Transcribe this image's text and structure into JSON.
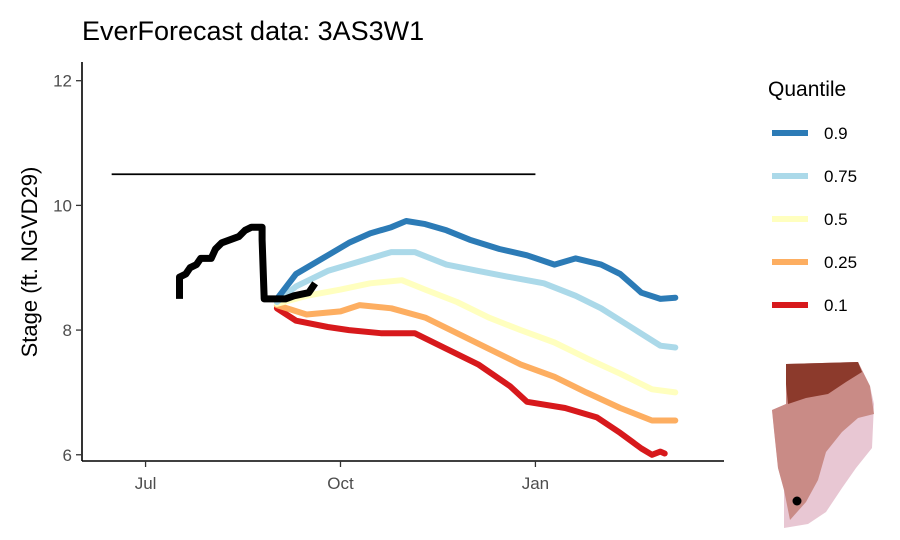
{
  "chart_data": {
    "type": "line",
    "title": "EverForecast data: 3AS3W1",
    "ylabel": "Stage (ft. NGVD29)",
    "xlabel": "",
    "x_ticks": [
      {
        "label": "Jul",
        "date": "2022-07-01"
      },
      {
        "label": "Oct",
        "date": "2022-10-01"
      },
      {
        "label": "Jan",
        "date": "2023-01-01"
      }
    ],
    "y_ticks": [
      6,
      8,
      10,
      12
    ],
    "xlim": [
      "2022-06-01",
      "2023-03-31"
    ],
    "ylim": [
      5.9,
      12.3
    ],
    "grid": false,
    "legend": {
      "title": "Quantile",
      "position": "right"
    },
    "reference_line": {
      "y": 10.5,
      "x_start": "2022-06-15",
      "x_end": "2023-01-01"
    },
    "observed": {
      "color": "#000000",
      "points": [
        [
          "2022-07-17",
          8.5
        ],
        [
          "2022-07-17",
          8.85
        ],
        [
          "2022-07-20",
          8.9
        ],
        [
          "2022-07-22",
          9.0
        ],
        [
          "2022-07-25",
          9.05
        ],
        [
          "2022-07-27",
          9.15
        ],
        [
          "2022-08-01",
          9.15
        ],
        [
          "2022-08-03",
          9.3
        ],
        [
          "2022-08-06",
          9.4
        ],
        [
          "2022-08-10",
          9.45
        ],
        [
          "2022-08-14",
          9.5
        ],
        [
          "2022-08-17",
          9.6
        ],
        [
          "2022-08-20",
          9.65
        ],
        [
          "2022-08-25",
          9.65
        ],
        [
          "2022-08-25",
          9.45
        ],
        [
          "2022-08-26",
          8.5
        ],
        [
          "2022-09-05",
          8.5
        ],
        [
          "2022-09-09",
          8.55
        ],
        [
          "2022-09-16",
          8.6
        ],
        [
          "2022-09-19",
          8.75
        ]
      ]
    },
    "series": [
      {
        "name": "0.9",
        "color": "#2c7bb6",
        "points": [
          [
            "2022-09-01",
            8.5
          ],
          [
            "2022-09-10",
            8.9
          ],
          [
            "2022-09-25",
            9.2
          ],
          [
            "2022-10-05",
            9.4
          ],
          [
            "2022-10-15",
            9.55
          ],
          [
            "2022-10-25",
            9.65
          ],
          [
            "2022-11-01",
            9.75
          ],
          [
            "2022-11-10",
            9.7
          ],
          [
            "2022-11-20",
            9.6
          ],
          [
            "2022-12-01",
            9.45
          ],
          [
            "2022-12-15",
            9.3
          ],
          [
            "2022-12-28",
            9.2
          ],
          [
            "2023-01-10",
            9.05
          ],
          [
            "2023-01-20",
            9.15
          ],
          [
            "2023-02-01",
            9.05
          ],
          [
            "2023-02-10",
            8.9
          ],
          [
            "2023-02-20",
            8.6
          ],
          [
            "2023-03-01",
            8.5
          ],
          [
            "2023-03-08",
            8.52
          ]
        ]
      },
      {
        "name": "0.75",
        "color": "#abd9e9",
        "points": [
          [
            "2022-09-01",
            8.45
          ],
          [
            "2022-09-10",
            8.7
          ],
          [
            "2022-09-25",
            8.95
          ],
          [
            "2022-10-10",
            9.1
          ],
          [
            "2022-10-25",
            9.25
          ],
          [
            "2022-11-05",
            9.25
          ],
          [
            "2022-11-20",
            9.05
          ],
          [
            "2022-12-05",
            8.95
          ],
          [
            "2022-12-20",
            8.85
          ],
          [
            "2023-01-05",
            8.75
          ],
          [
            "2023-01-20",
            8.55
          ],
          [
            "2023-02-01",
            8.35
          ],
          [
            "2023-02-15",
            8.05
          ],
          [
            "2023-03-01",
            7.75
          ],
          [
            "2023-03-08",
            7.72
          ]
        ]
      },
      {
        "name": "0.5",
        "color": "#ffffbf",
        "points": [
          [
            "2022-09-01",
            8.42
          ],
          [
            "2022-09-15",
            8.55
          ],
          [
            "2022-10-01",
            8.65
          ],
          [
            "2022-10-15",
            8.75
          ],
          [
            "2022-10-30",
            8.8
          ],
          [
            "2022-11-10",
            8.65
          ],
          [
            "2022-11-25",
            8.45
          ],
          [
            "2022-12-10",
            8.2
          ],
          [
            "2022-12-25",
            8.0
          ],
          [
            "2023-01-10",
            7.8
          ],
          [
            "2023-01-25",
            7.55
          ],
          [
            "2023-02-10",
            7.3
          ],
          [
            "2023-02-25",
            7.05
          ],
          [
            "2023-03-08",
            7.0
          ]
        ]
      },
      {
        "name": "0.25",
        "color": "#fdae61",
        "points": [
          [
            "2022-09-01",
            8.4
          ],
          [
            "2022-09-15",
            8.25
          ],
          [
            "2022-10-01",
            8.3
          ],
          [
            "2022-10-10",
            8.4
          ],
          [
            "2022-10-25",
            8.35
          ],
          [
            "2022-11-10",
            8.2
          ],
          [
            "2022-11-25",
            7.95
          ],
          [
            "2022-12-10",
            7.7
          ],
          [
            "2022-12-25",
            7.45
          ],
          [
            "2023-01-10",
            7.25
          ],
          [
            "2023-01-25",
            7.0
          ],
          [
            "2023-02-10",
            6.75
          ],
          [
            "2023-02-25",
            6.55
          ],
          [
            "2023-03-08",
            6.55
          ]
        ]
      },
      {
        "name": "0.1",
        "color": "#d7191c",
        "points": [
          [
            "2022-09-01",
            8.35
          ],
          [
            "2022-09-10",
            8.15
          ],
          [
            "2022-09-25",
            8.05
          ],
          [
            "2022-10-05",
            8.0
          ],
          [
            "2022-10-20",
            7.95
          ],
          [
            "2022-11-05",
            7.95
          ],
          [
            "2022-11-20",
            7.7
          ],
          [
            "2022-12-05",
            7.45
          ],
          [
            "2022-12-20",
            7.1
          ],
          [
            "2022-12-28",
            6.85
          ],
          [
            "2023-01-15",
            6.75
          ],
          [
            "2023-01-30",
            6.6
          ],
          [
            "2023-02-10",
            6.35
          ],
          [
            "2023-02-20",
            6.1
          ],
          [
            "2023-02-25",
            6.0
          ],
          [
            "2023-03-01",
            6.05
          ],
          [
            "2023-03-03",
            6.02
          ]
        ]
      }
    ]
  },
  "inset_map": {
    "colors": {
      "dark": "#8c3a2c",
      "mid": "#c98b86",
      "light": "#e8c7d3"
    },
    "marker_color": "#000000"
  }
}
